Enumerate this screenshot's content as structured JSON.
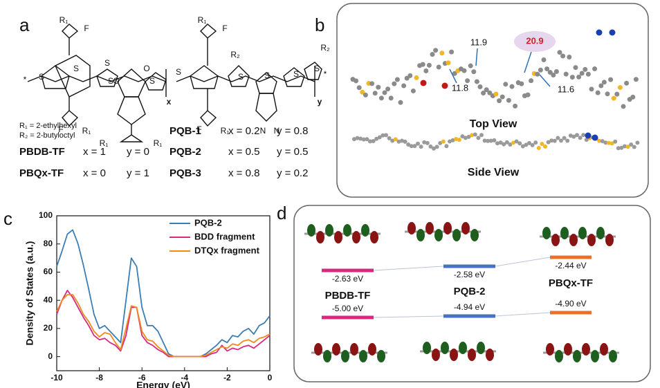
{
  "panel_a": {
    "label": "a",
    "atoms": [
      "R₁",
      "F",
      "S",
      "S",
      "S",
      "S",
      "S",
      "O",
      "O",
      "R₁",
      "R₁",
      "F",
      "R₁",
      "x",
      "R₁",
      "F",
      "S",
      "R₂",
      "S",
      "S",
      "S",
      "R₂",
      "S",
      "N",
      "N",
      "F",
      "R₁",
      "y",
      "*",
      "*"
    ],
    "substituents": [
      "R₁ = 2-ethylhexyl",
      "R₂ = 2-butyloctyl"
    ],
    "polymers": [
      [
        "PBDB-TF",
        "x = 1",
        "y = 0"
      ],
      [
        "PBQx-TF",
        "x = 0",
        "y = 1"
      ],
      [
        "PQB-1",
        "x = 0.2",
        "y = 0.8"
      ],
      [
        "PQB-2",
        "x = 0.5",
        "y = 0.5"
      ],
      [
        "PQB-3",
        "x = 0.8",
        "y = 0.2"
      ]
    ]
  },
  "panel_b": {
    "label": "b",
    "distances": [
      "11.9",
      "20.9",
      "11.8",
      "11.6"
    ],
    "views": [
      "Top View",
      "Side View"
    ]
  },
  "chart_data": {
    "type": "line",
    "label": "c",
    "x_label": "Energy (eV)",
    "y_label": "Density of States (a.u.)",
    "x": [
      -10,
      -9.75,
      -9.5,
      -9.25,
      -9,
      -8.75,
      -8.5,
      -8.25,
      -8,
      -7.75,
      -7.5,
      -7.25,
      -7,
      -6.75,
      -6.5,
      -6.25,
      -6,
      -5.75,
      -5.5,
      -5.25,
      -5,
      -4.75,
      -4.5,
      -4.25,
      -4,
      -3.75,
      -3.5,
      -3.25,
      -3,
      -2.75,
      -2.5,
      -2.25,
      -2,
      -1.75,
      -1.5,
      -1.25,
      -1,
      -0.75,
      -0.5,
      -0.25,
      0
    ],
    "series": [
      {
        "name": "PQB-2",
        "color": "#3a7db3",
        "values": [
          64,
          75,
          87,
          90,
          80,
          65,
          48,
          30,
          20,
          22,
          18,
          14,
          10,
          40,
          70,
          64,
          35,
          22,
          22,
          18,
          10,
          2,
          0,
          0,
          0,
          0,
          0,
          0,
          2,
          5,
          8,
          12,
          10,
          15,
          14,
          18,
          20,
          16,
          22,
          24,
          29
        ]
      },
      {
        "name": "BDD fragment",
        "color": "#d8287f",
        "values": [
          30,
          40,
          47,
          42,
          35,
          28,
          22,
          15,
          12,
          13,
          10,
          8,
          4,
          15,
          35,
          35,
          15,
          10,
          8,
          5,
          3,
          0,
          0,
          0,
          0,
          0,
          0,
          0,
          0,
          2,
          3,
          8,
          4,
          6,
          5,
          7,
          8,
          6,
          9,
          12,
          15
        ]
      },
      {
        "name": "DTQx fragment",
        "color": "#f0891d",
        "values": [
          32,
          40,
          44,
          44,
          38,
          30,
          25,
          18,
          14,
          17,
          16,
          10,
          5,
          20,
          36,
          35,
          18,
          12,
          11,
          7,
          4,
          1,
          0,
          0,
          0,
          0,
          0,
          0,
          1,
          3,
          5,
          7,
          6,
          9,
          8,
          11,
          12,
          10,
          13,
          14,
          16
        ]
      }
    ],
    "xlim": [
      -10,
      0
    ],
    "xticks": [
      -10,
      -8,
      -6,
      -4,
      -2,
      0
    ],
    "ylim": [
      -10,
      100
    ],
    "yticks": [
      0,
      20,
      40,
      60,
      80,
      100
    ],
    "legend": "upper right"
  },
  "panel_d": {
    "label": "d",
    "polymers": [
      {
        "name": "PBDB-TF",
        "lumo": "-2.63 eV",
        "homo": "-5.00 eV",
        "color": "#d8287f"
      },
      {
        "name": "PQB-2",
        "lumo": "-2.58 eV",
        "homo": "-4.94 eV",
        "color": "#4472c4"
      },
      {
        "name": "PBQx-TF",
        "lumo": "-2.44 eV",
        "homo": "-4.90 eV",
        "color": "#e9702a"
      }
    ]
  }
}
